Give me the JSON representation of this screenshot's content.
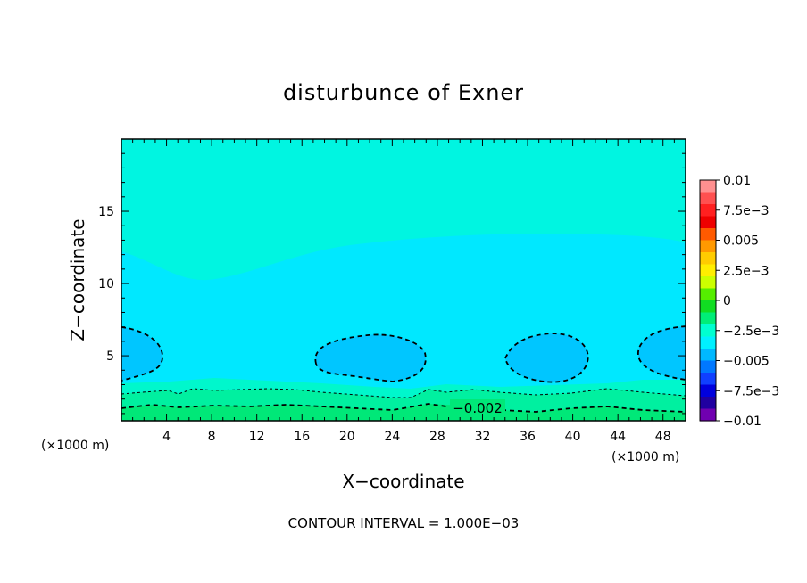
{
  "chart_data": {
    "type": "contour",
    "title": "disturbunce of Exner",
    "xlabel": "X−coordinate",
    "ylabel": "Z−coordinate",
    "x_units_left": "(×1000 m)",
    "x_units_right": "(×1000 m)",
    "xlim": [
      0,
      50
    ],
    "ylim": [
      0.5,
      20
    ],
    "xticks": [
      4,
      8,
      12,
      16,
      20,
      24,
      28,
      32,
      36,
      40,
      44,
      48
    ],
    "yticks": [
      5,
      10,
      15
    ],
    "colorbar": {
      "range": [
        -0.01,
        0.01
      ],
      "tick_labels": [
        "0.01",
        "7.5e−3",
        "0.005",
        "2.5e−3",
        "0",
        "−2.5e−3",
        "−0.005",
        "−7.5e−3",
        "−0.01"
      ],
      "colors": [
        "#ff9090",
        "#ff5050",
        "#ff2020",
        "#ee0000",
        "#ff5a00",
        "#ff9900",
        "#ffcc00",
        "#ffee00",
        "#ccff00",
        "#55ee00",
        "#11dd22",
        "#00ee77",
        "#00ffd0",
        "#00f0ff",
        "#00b8ff",
        "#0078ff",
        "#1040ff",
        "#0000dd",
        "#2000a0",
        "#7000b0"
      ]
    },
    "contour_labels": [
      "−0.002"
    ],
    "footer": "CONTOUR INTERVAL = 1.000E−03"
  }
}
